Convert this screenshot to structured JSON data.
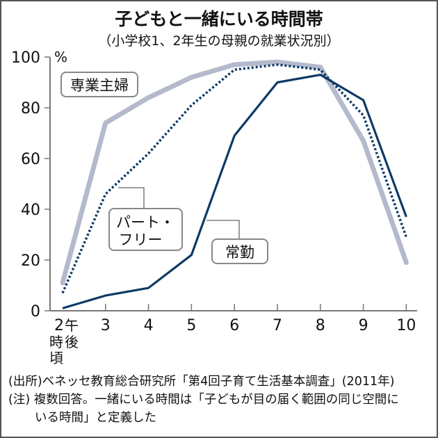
{
  "title": "子どもと一緒にいる時間帯",
  "subtitle": "（小学校1、2年生の母親の就業状況別）",
  "source": "(出所)ベネッセ教育総合研究所「第4回子育て生活基本調査」(2011年)",
  "note_line1": "(注) 複数回答。一緒にいる時間は「子どもが目の届く範囲の同じ空間に",
  "note_line2": "いる時間」と定義した",
  "colors": {
    "homemaker": "#b4bacb",
    "parttime": "#0d3a66",
    "fulltime": "#0d3a66",
    "axis": "#777777"
  },
  "chart_data": {
    "type": "line",
    "title": "子どもと一緒にいる時間帯",
    "subtitle": "（小学校1、2年生の母親の就業状況別）",
    "x": [
      2,
      3,
      4,
      5,
      6,
      7,
      8,
      9,
      10
    ],
    "x_tick_labels": [
      "2",
      "3",
      "4",
      "5",
      "6",
      "7",
      "8",
      "9",
      "10"
    ],
    "x_first_label_suffix": "午後",
    "x_first_label_extra": "時頃",
    "xlabel": "午後 時頃",
    "ylabel": "%",
    "ylim": [
      0,
      100
    ],
    "y_ticks": [
      0,
      20,
      40,
      60,
      80,
      100
    ],
    "grid": false,
    "legend_position": "inline labels",
    "series": [
      {
        "name": "専業主婦",
        "style": "thick-gray",
        "values": [
          11,
          74,
          84,
          92,
          97,
          98,
          96,
          67,
          19
        ]
      },
      {
        "name": "パート・フリー",
        "style": "dotted-navy",
        "values": [
          7,
          46,
          62,
          81,
          95,
          97,
          95,
          77,
          29
        ]
      },
      {
        "name": "常勤",
        "style": "solid-navy",
        "values": [
          1,
          6,
          9,
          22,
          69,
          90,
          93,
          83,
          37
        ]
      }
    ]
  }
}
